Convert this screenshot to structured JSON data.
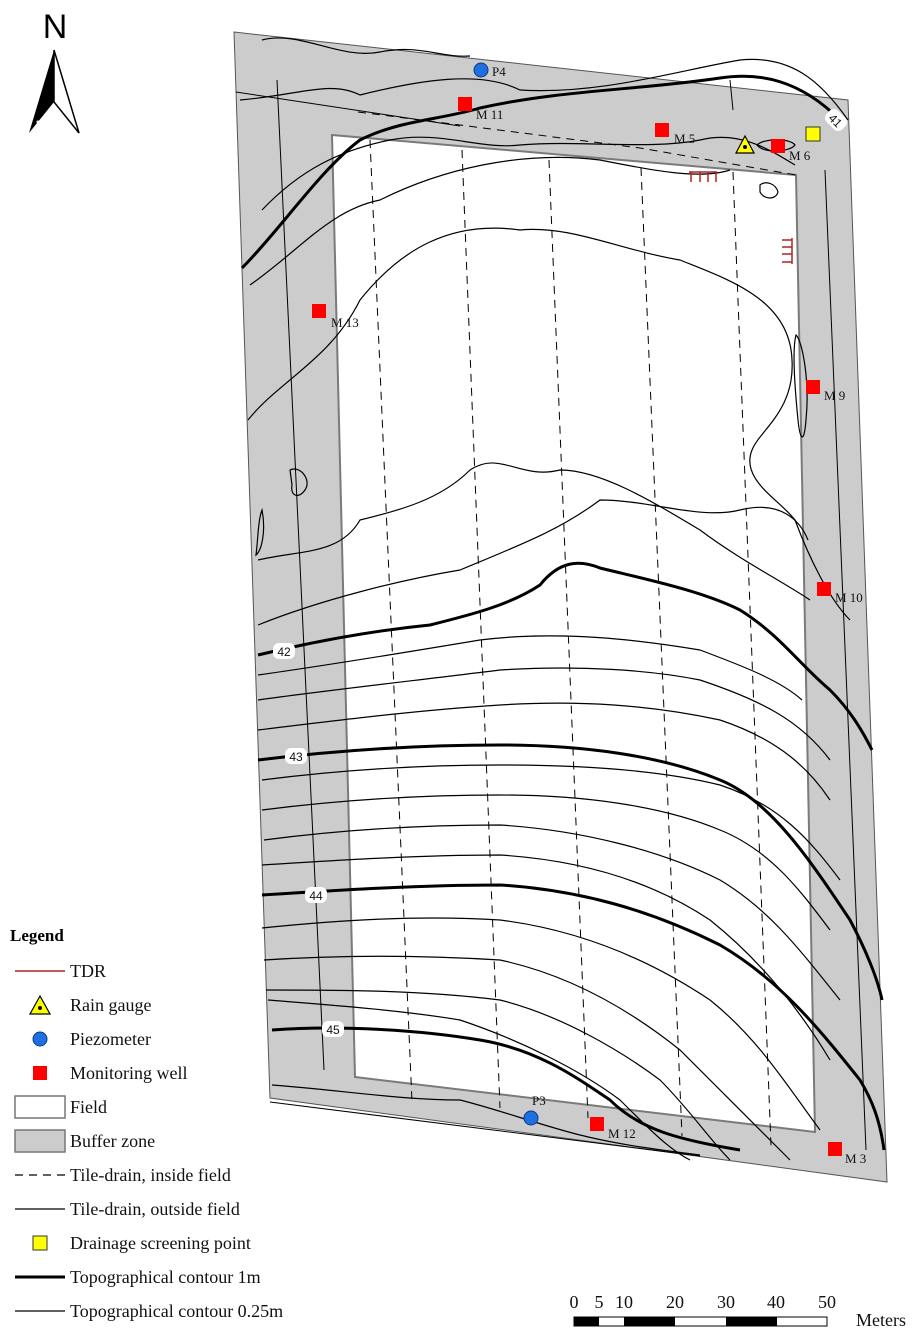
{
  "north": {
    "label": "N"
  },
  "legend": {
    "title": "Legend",
    "items": [
      {
        "key": "tdr",
        "label": "TDR"
      },
      {
        "key": "rain",
        "label": "Rain gauge"
      },
      {
        "key": "piezometer",
        "label": "Piezometer"
      },
      {
        "key": "well",
        "label": "Monitoring well"
      },
      {
        "key": "field",
        "label": "Field"
      },
      {
        "key": "buffer",
        "label": "Buffer zone"
      },
      {
        "key": "drain-inside",
        "label": "Tile-drain, inside field"
      },
      {
        "key": "drain-outside",
        "label": "Tile-drain, outside field"
      },
      {
        "key": "screening",
        "label": "Drainage screening point"
      },
      {
        "key": "contour-1m",
        "label": "Topographical contour 1m"
      },
      {
        "key": "contour-025",
        "label": "Topographical contour 0.25m"
      }
    ]
  },
  "sites": {
    "P4": "P4",
    "M11": "M 11",
    "M5": "M 5",
    "M6": "M 6",
    "M13": "M 13",
    "M9": "M 9",
    "M10": "M 10",
    "P3": "P3",
    "M12": "M 12",
    "M3": "M 3"
  },
  "contour_labels": {
    "c41": "41",
    "c42": "42",
    "c43": "43",
    "c44": "44",
    "c45": "45"
  },
  "scale": {
    "ticks": [
      "0",
      "5",
      "10",
      "20",
      "30",
      "40",
      "50"
    ],
    "unit": "Meters"
  },
  "colors": {
    "buffer": "#cccccc",
    "field": "#ffffff",
    "well": "#ff0000",
    "piezometer": "#1f6fe0",
    "rain_gauge": "#ffff00",
    "screening": "#ffff00",
    "tdr": "#b22222"
  }
}
